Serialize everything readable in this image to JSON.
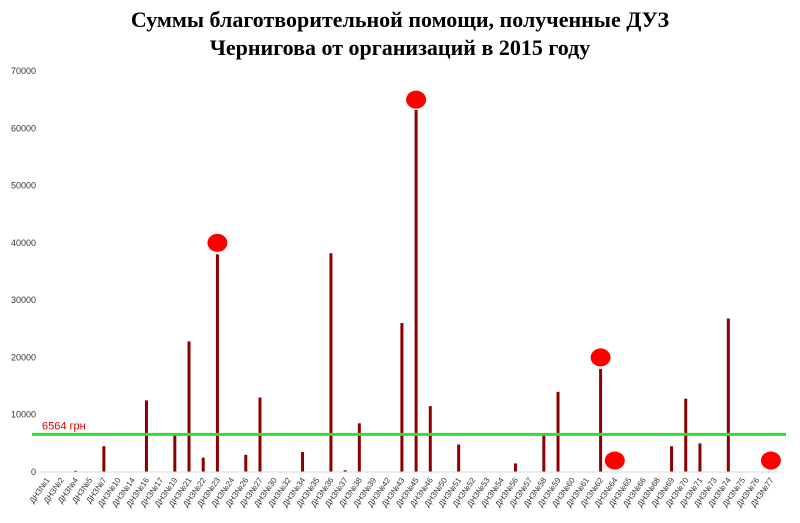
{
  "title_line1": "Суммы благотворительной помощи, полученные ДУЗ",
  "title_line2": "Чернигова от организаций в 2015 году",
  "chart_data": {
    "type": "bar",
    "title": "Суммы благотворительной помощи, полученные ДУЗ Чернигова от организаций в 2015 году",
    "xlabel": "",
    "ylabel": "",
    "ylim": [
      0,
      70000
    ],
    "yticks": [
      0,
      10000,
      20000,
      30000,
      40000,
      50000,
      60000,
      70000
    ],
    "grid": false,
    "categories": [
      "ДНЗ№1",
      "ДНЗ№2",
      "ДНЗ№4",
      "ДНЗ№5",
      "ДНЗ№7",
      "ДНЗ№10",
      "ДНЗ№14",
      "ДНЗ№16",
      "ДНЗ№17",
      "ДНЗ№19",
      "ДНЗ№21",
      "ДНЗ№22",
      "ДНЗ№23",
      "ДНЗ№24",
      "ДНЗ№26",
      "ДНЗ№27",
      "ДНЗ№30",
      "ДНЗ№32",
      "ДНЗ№34",
      "ДНЗ№35",
      "ДНЗ№36",
      "ДНЗ№37",
      "ДНЗ№38",
      "ДНЗ№39",
      "ДНЗ№42",
      "ДНЗ№43",
      "ДНЗ№45",
      "ДНЗ№46",
      "ДНЗ№50",
      "ДНЗ№51",
      "ДНЗ№52",
      "ДНЗ№53",
      "ДНЗ№54",
      "ДНЗ№56",
      "ДНЗ№57",
      "ДНЗ№58",
      "ДНЗ№59",
      "ДНЗ№60",
      "ДНЗ№61",
      "ДНЗ№62",
      "ДНЗ№64",
      "ДНЗ№65",
      "ДНЗ№66",
      "ДНЗ№68",
      "ДНЗ№69",
      "ДНЗ№70",
      "ДНЗ№71",
      "ДНЗ№73",
      "ДНЗ№74",
      "ДНЗ№75",
      "ДНЗ№76",
      "ДНЗ№77"
    ],
    "values": [
      0,
      0,
      200,
      0,
      4500,
      0,
      0,
      12500,
      0,
      6500,
      22800,
      2500,
      38000,
      0,
      3000,
      13000,
      0,
      0,
      3500,
      0,
      38200,
      300,
      8500,
      0,
      0,
      26000,
      63200,
      11500,
      0,
      4800,
      0,
      0,
      0,
      1500,
      0,
      6500,
      14000,
      0,
      0,
      18000,
      0,
      0,
      0,
      0,
      4500,
      12800,
      5000,
      0,
      26800,
      0,
      0,
      0
    ],
    "bar_color": "#8b0000",
    "reference_line": {
      "value": 6564,
      "label": "6564 грн",
      "color": "#33dd33",
      "label_color": "#e00000"
    },
    "highlight_markers": [
      {
        "category": "ДНЗ№23",
        "value": 40000
      },
      {
        "category": "ДНЗ№45",
        "value": 65000
      },
      {
        "category": "ДНЗ№62",
        "value": 20000
      },
      {
        "category": "ДНЗ№64",
        "value": 2000
      },
      {
        "category": "ДНЗ№77",
        "value": 2000
      }
    ],
    "marker_color": "#ff0000"
  }
}
